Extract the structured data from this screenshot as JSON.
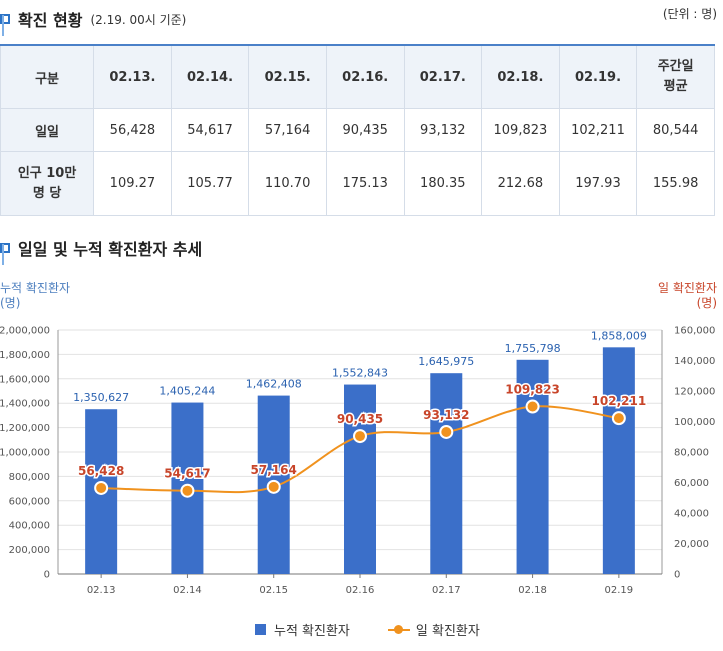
{
  "section1": {
    "title": "확진 현황",
    "subtitle": "(2.19. 00시 기준)",
    "unit": "(단위 : 명)"
  },
  "table": {
    "header": [
      "구분",
      "02.13.",
      "02.14.",
      "02.15.",
      "02.16.",
      "02.17.",
      "02.18.",
      "02.19.",
      "주간일\n평균"
    ],
    "rows": [
      {
        "label": "일일",
        "values": [
          "56,428",
          "54,617",
          "57,164",
          "90,435",
          "93,132",
          "109,823",
          "102,211",
          "80,544"
        ]
      },
      {
        "label": "인구 10만\n명 당",
        "values": [
          "109.27",
          "105.77",
          "110.70",
          "175.13",
          "180.35",
          "212.68",
          "197.93",
          "155.98"
        ]
      }
    ]
  },
  "section2": {
    "title": "일일 및 누적 확진환자 추세"
  },
  "axis_labels": {
    "left_line1": "누적 확진환자",
    "left_line2": "(명)",
    "right_line1": "일 확진환자",
    "right_line2": "(명)"
  },
  "legend": {
    "bar": "누적 확진환자",
    "line": "일 확진환자"
  },
  "colors": {
    "bar": "#3b6fc9",
    "line": "#f0921e",
    "bar_label": "#2b62b0",
    "line_label": "#c8452a",
    "grid": "#e2e2e2"
  },
  "chart_data": {
    "type": "bar",
    "categories": [
      "02.13",
      "02.14",
      "02.15",
      "02.16",
      "02.17",
      "02.18",
      "02.19"
    ],
    "series": [
      {
        "name": "누적 확진환자",
        "type": "bar",
        "axis": "left",
        "values": [
          1350627,
          1405244,
          1462408,
          1552843,
          1645975,
          1755798,
          1858009
        ],
        "labels": [
          "1,350,627",
          "1,405,244",
          "1,462,408",
          "1,552,843",
          "1,645,975",
          "1,755,798",
          "1,858,009"
        ]
      },
      {
        "name": "일 확진환자",
        "type": "line",
        "axis": "right",
        "values": [
          56428,
          54617,
          57164,
          90435,
          93132,
          109823,
          102211
        ],
        "labels": [
          "56,428",
          "54,617",
          "57,164",
          "90,435",
          "93,132",
          "109,823",
          "102,211"
        ]
      }
    ],
    "ylim_left": [
      0,
      2000000
    ],
    "ylim_right": [
      0,
      160000
    ],
    "yticks_left": [
      "0",
      "200,000",
      "400,000",
      "600,000",
      "800,000",
      "1,000,000",
      "1,200,000",
      "1,400,000",
      "1,600,000",
      "1,800,000",
      "2,000,000"
    ],
    "yticks_right": [
      "0",
      "20,000",
      "40,000",
      "60,000",
      "80,000",
      "100,000",
      "120,000",
      "140,000",
      "160,000"
    ],
    "grid": true,
    "legend": "bottom"
  }
}
